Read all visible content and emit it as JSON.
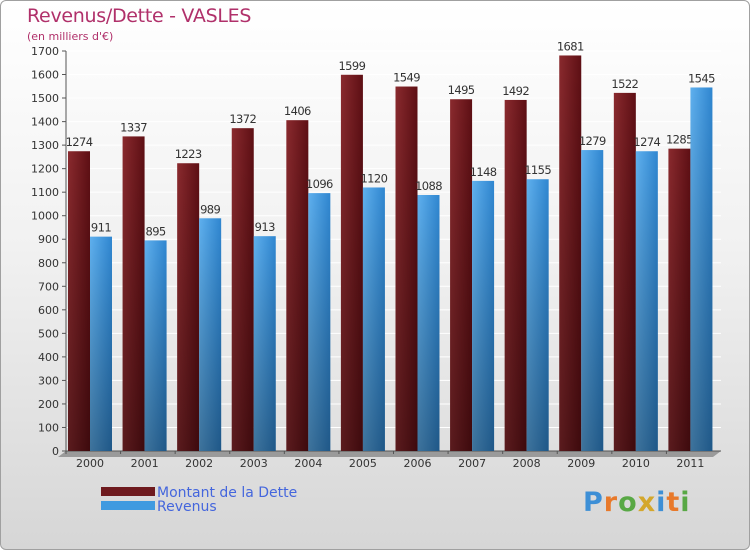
{
  "chart_data": {
    "type": "bar",
    "title": "Revenus/Dette - VASLES",
    "subtitle": "(en milliers d'€)",
    "categories": [
      "2000",
      "2001",
      "2002",
      "2003",
      "2004",
      "2005",
      "2006",
      "2007",
      "2008",
      "2009",
      "2010",
      "2011"
    ],
    "series": [
      {
        "name": "Montant de la Dette",
        "color": "#6e1a1e",
        "values": [
          1274,
          1337,
          1223,
          1372,
          1406,
          1599,
          1549,
          1495,
          1492,
          1681,
          1522,
          1285
        ]
      },
      {
        "name": "Revenus",
        "color": "#3f9ae0",
        "values": [
          911,
          895,
          989,
          913,
          1096,
          1120,
          1088,
          1148,
          1155,
          1279,
          1274,
          1545
        ]
      }
    ],
    "ylim": [
      0,
      1700
    ],
    "yticks": [
      0,
      100,
      200,
      300,
      400,
      500,
      600,
      700,
      800,
      900,
      1000,
      1100,
      1200,
      1300,
      1400,
      1500,
      1600,
      1700
    ],
    "grid": true,
    "legend_position": "bottom-left"
  },
  "brand": {
    "letters": [
      "P",
      "r",
      "o",
      "x",
      "i",
      "t",
      "i"
    ],
    "colors": [
      "#3d8fd6",
      "#e8792a",
      "#58a845",
      "#d4a72c",
      "#3d8fd6",
      "#e8792a",
      "#58a845"
    ]
  }
}
